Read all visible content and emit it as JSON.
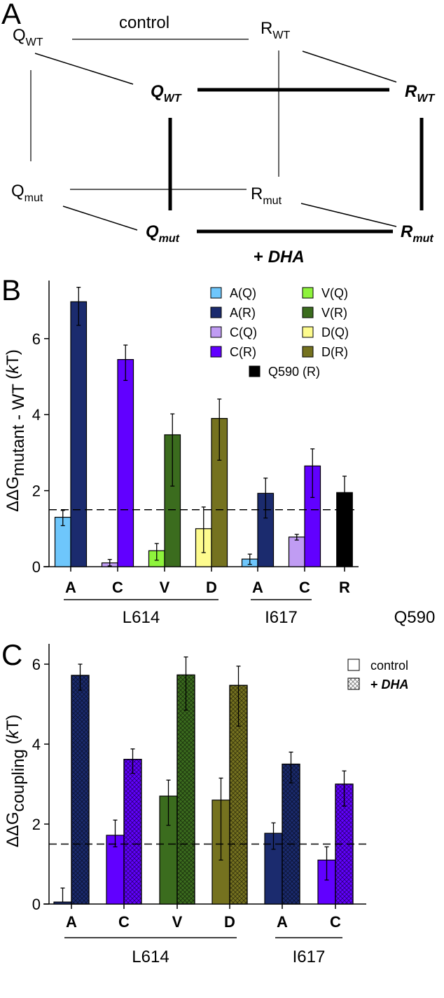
{
  "panelA": {
    "label": "A",
    "control": "control",
    "dha_plus": "+ ",
    "dha": "DHA",
    "nodes": {
      "Q_WT": {
        "main": "Q",
        "sub": "WT"
      },
      "R_WT": {
        "main": "R",
        "sub": "WT"
      },
      "Q_WT_dha": {
        "main": "Q",
        "sub": "WT"
      },
      "R_WT_dha": {
        "main": "R",
        "sub": "WT"
      },
      "Q_mut": {
        "main": "Q",
        "sub": "mut"
      },
      "R_mut": {
        "main": "R",
        "sub": "mut"
      },
      "Q_mut_dha": {
        "main": "Q",
        "sub": "mut"
      },
      "R_mut_dha": {
        "main": "R",
        "sub": "mut"
      }
    }
  },
  "chart_data": [
    {
      "type": "bar",
      "panel": "B",
      "ylabel_main": "ΔΔG",
      "ylabel_sub": "mutant - WT",
      "ylabel_unit_open": " (",
      "ylabel_unit_k": "k",
      "ylabel_unit_close": "T)",
      "ylim": [
        0,
        7.5
      ],
      "yticks": [
        "0",
        "2",
        "4",
        "6"
      ],
      "threshold": 1.5,
      "categories": [
        "A",
        "C",
        "V",
        "D",
        "A",
        "C",
        "R"
      ],
      "groups": [
        {
          "name": "L614",
          "from": 0,
          "to": 3
        },
        {
          "name": "I617",
          "from": 4,
          "to": 5
        },
        {
          "name": "Q590",
          "from": 6,
          "to": 6,
          "noline": true
        }
      ],
      "legend": [
        {
          "label": "A(Q)",
          "color": "#6ec6fb"
        },
        {
          "label": "A(R)",
          "color": "#1b2b6e"
        },
        {
          "label": "C(Q)",
          "color": "#c09cf3"
        },
        {
          "label": "C(R)",
          "color": "#6100ff"
        },
        {
          "label": "V(Q)",
          "color": "#8ef33c"
        },
        {
          "label": "V(R)",
          "color": "#3b6c1e"
        },
        {
          "label": "D(Q)",
          "color": "#fdfb8e"
        },
        {
          "label": "D(R)",
          "color": "#75721f"
        },
        {
          "label": "Q590 (R)",
          "color": "#000000"
        }
      ],
      "bars": [
        {
          "cat": 0,
          "side": "Q",
          "color": "#6ec6fb",
          "value": 1.3,
          "err_hi": 1.48,
          "err_lo": 1.08
        },
        {
          "cat": 0,
          "side": "R",
          "color": "#1b2b6e",
          "value": 6.97,
          "err_hi": 7.35,
          "err_lo": 6.35
        },
        {
          "cat": 1,
          "side": "Q",
          "color": "#c09cf3",
          "value": 0.1,
          "err_hi": 0.19,
          "err_lo": 0.02
        },
        {
          "cat": 1,
          "side": "R",
          "color": "#6100ff",
          "value": 5.45,
          "err_hi": 5.83,
          "err_lo": 4.9
        },
        {
          "cat": 2,
          "side": "Q",
          "color": "#8ef33c",
          "value": 0.42,
          "err_hi": 0.61,
          "err_lo": 0.17
        },
        {
          "cat": 2,
          "side": "R",
          "color": "#3b6c1e",
          "value": 3.47,
          "err_hi": 4.02,
          "err_lo": 2.12
        },
        {
          "cat": 3,
          "side": "Q",
          "color": "#fdfb8e",
          "value": 1.0,
          "err_hi": 1.57,
          "err_lo": 0.37
        },
        {
          "cat": 3,
          "side": "R",
          "color": "#75721f",
          "value": 3.9,
          "err_hi": 4.41,
          "err_lo": 2.8
        },
        {
          "cat": 4,
          "side": "Q",
          "color": "#6ec6fb",
          "value": 0.2,
          "err_hi": 0.33,
          "err_lo": 0.06
        },
        {
          "cat": 4,
          "side": "R",
          "color": "#1b2b6e",
          "value": 1.93,
          "err_hi": 2.33,
          "err_lo": 1.28
        },
        {
          "cat": 5,
          "side": "Q",
          "color": "#c09cf3",
          "value": 0.78,
          "err_hi": 0.85,
          "err_lo": 0.7
        },
        {
          "cat": 5,
          "side": "R",
          "color": "#6100ff",
          "value": 2.65,
          "err_hi": 3.1,
          "err_lo": 1.82
        },
        {
          "cat": 6,
          "side": "C",
          "color": "#000000",
          "value": 1.95,
          "err_hi": 2.38,
          "err_lo": 1.95
        }
      ]
    },
    {
      "type": "bar",
      "panel": "C",
      "ylabel_main": "ΔΔG",
      "ylabel_sub": "coupling",
      "ylabel_unit_open": "  (",
      "ylabel_unit_k": "k",
      "ylabel_unit_close": "T)",
      "ylim": [
        0,
        6.5
      ],
      "yticks": [
        "0",
        "2",
        "4",
        "6"
      ],
      "threshold": 1.5,
      "categories": [
        "A",
        "C",
        "V",
        "D",
        "A",
        "C"
      ],
      "groups": [
        {
          "name": "L614",
          "from": 0,
          "to": 3
        },
        {
          "name": "I617",
          "from": 4,
          "to": 5
        }
      ],
      "legend": [
        {
          "label": "control",
          "hatch": false
        },
        {
          "label_plus": "+ ",
          "label": "DHA",
          "hatch": true
        }
      ],
      "bars": [
        {
          "cat": 0,
          "side": "Q",
          "hatch": false,
          "color": "#1b2b6e",
          "value": 0.05,
          "err_hi": 0.4,
          "err_lo": 0.05
        },
        {
          "cat": 0,
          "side": "R",
          "hatch": true,
          "color": "#1b2b6e",
          "value": 5.72,
          "err_hi": 6.0,
          "err_lo": 5.35
        },
        {
          "cat": 1,
          "side": "Q",
          "hatch": false,
          "color": "#6100ff",
          "value": 1.72,
          "err_hi": 2.1,
          "err_lo": 1.43
        },
        {
          "cat": 1,
          "side": "R",
          "hatch": true,
          "color": "#6100ff",
          "value": 3.62,
          "err_hi": 3.88,
          "err_lo": 3.27
        },
        {
          "cat": 2,
          "side": "Q",
          "hatch": false,
          "color": "#3b6c1e",
          "value": 2.7,
          "err_hi": 3.1,
          "err_lo": 1.97
        },
        {
          "cat": 2,
          "side": "R",
          "hatch": true,
          "color": "#3b6c1e",
          "value": 5.73,
          "err_hi": 6.18,
          "err_lo": 4.85
        },
        {
          "cat": 3,
          "side": "Q",
          "hatch": false,
          "color": "#75721f",
          "value": 2.6,
          "err_hi": 3.15,
          "err_lo": 1.1
        },
        {
          "cat": 3,
          "side": "R",
          "hatch": true,
          "color": "#75721f",
          "value": 5.47,
          "err_hi": 5.95,
          "err_lo": 4.45
        },
        {
          "cat": 4,
          "side": "Q",
          "hatch": false,
          "color": "#1b2b6e",
          "value": 1.77,
          "err_hi": 2.03,
          "err_lo": 1.37
        },
        {
          "cat": 4,
          "side": "R",
          "hatch": true,
          "color": "#1b2b6e",
          "value": 3.5,
          "err_hi": 3.8,
          "err_lo": 3.03
        },
        {
          "cat": 5,
          "side": "Q",
          "hatch": false,
          "color": "#6100ff",
          "value": 1.1,
          "err_hi": 1.43,
          "err_lo": 0.6
        },
        {
          "cat": 5,
          "side": "R",
          "hatch": true,
          "color": "#6100ff",
          "value": 3.0,
          "err_hi": 3.33,
          "err_lo": 2.45
        }
      ]
    }
  ]
}
